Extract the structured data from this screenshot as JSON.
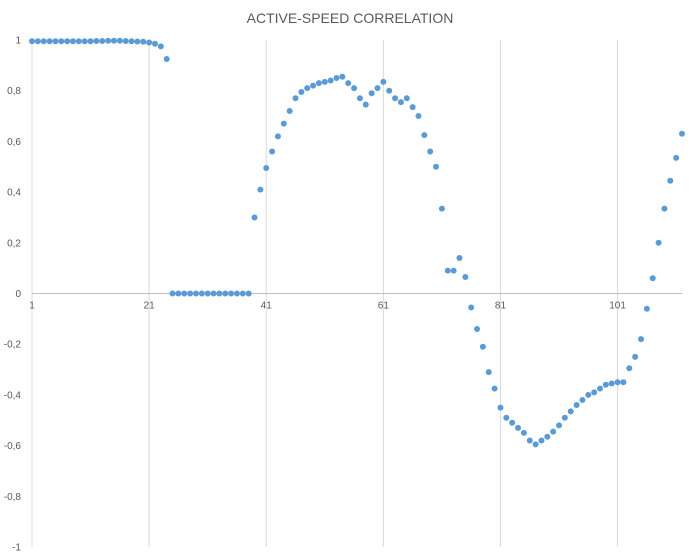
{
  "chart_data": {
    "type": "scatter",
    "title": "ACTIVE-SPEED CORRELATION",
    "xlabel": "",
    "ylabel": "",
    "xlim": [
      1,
      112
    ],
    "ylim": [
      -1,
      1
    ],
    "x_ticks": [
      1,
      21,
      41,
      61,
      81,
      101
    ],
    "x_tick_labels": [
      "1",
      "21",
      "41",
      "61",
      "81",
      "101"
    ],
    "y_ticks": [
      1,
      0.8,
      0.6,
      0.4,
      0.2,
      0,
      -0.2,
      -0.4,
      -0.6,
      -0.8,
      -1
    ],
    "y_tick_labels": [
      "1",
      "0,8",
      "0,6",
      "0,4",
      "0,2",
      "0",
      "-0,2",
      "-0,4",
      "-0,6",
      "-0,8",
      "-1"
    ],
    "grid": "vertical",
    "legend": "none",
    "marker_color": "#5B9BD5",
    "series": [
      {
        "x": [
          1,
          2,
          3,
          4,
          5,
          6,
          7,
          8,
          9,
          10,
          11,
          12,
          13,
          14,
          15,
          16,
          17,
          18,
          19,
          20,
          21,
          22,
          23,
          24,
          25,
          26,
          27,
          28,
          29,
          30,
          31,
          32,
          33,
          34,
          35,
          36,
          37,
          38,
          39,
          40,
          41,
          42,
          43,
          44,
          45,
          46,
          47,
          48,
          49,
          50,
          51,
          52,
          53,
          54,
          55,
          56,
          57,
          58,
          59,
          60,
          61,
          62,
          63,
          64,
          65,
          66,
          67,
          68,
          69,
          70,
          71,
          72,
          73,
          74,
          75,
          76,
          77,
          78,
          79,
          80,
          81,
          82,
          83,
          84,
          85,
          86,
          87,
          88,
          89,
          90,
          91,
          92,
          93,
          94,
          95,
          96,
          97,
          98,
          99,
          100,
          101,
          102,
          103,
          104,
          105,
          106,
          107,
          108,
          109,
          110,
          111,
          112
        ],
        "y": [
          0.995,
          0.995,
          0.995,
          0.995,
          0.995,
          0.995,
          0.995,
          0.995,
          0.995,
          0.995,
          0.995,
          0.996,
          0.996,
          0.997,
          0.997,
          0.997,
          0.996,
          0.995,
          0.994,
          0.993,
          0.99,
          0.985,
          0.975,
          0.925,
          0,
          0,
          0,
          0,
          0,
          0,
          0,
          0,
          0,
          0,
          0,
          0,
          0,
          0,
          0.3,
          0.41,
          0.495,
          0.56,
          0.62,
          0.67,
          0.72,
          0.77,
          0.795,
          0.81,
          0.82,
          0.83,
          0.835,
          0.84,
          0.85,
          0.855,
          0.83,
          0.81,
          0.77,
          0.745,
          0.79,
          0.81,
          0.835,
          0.8,
          0.77,
          0.755,
          0.77,
          0.735,
          0.7,
          0.625,
          0.56,
          0.5,
          0.335,
          0.09,
          0.09,
          0.14,
          0.065,
          -0.055,
          -0.14,
          -0.21,
          -0.31,
          -0.375,
          -0.45,
          -0.49,
          -0.51,
          -0.53,
          -0.55,
          -0.58,
          -0.595,
          -0.58,
          -0.565,
          -0.545,
          -0.52,
          -0.49,
          -0.465,
          -0.44,
          -0.42,
          -0.4,
          -0.39,
          -0.375,
          -0.36,
          -0.355,
          -0.35,
          -0.35,
          -0.295,
          -0.25,
          -0.18,
          -0.06,
          0.06,
          0.2,
          0.335,
          0.445,
          0.535,
          0.63
        ]
      }
    ]
  }
}
